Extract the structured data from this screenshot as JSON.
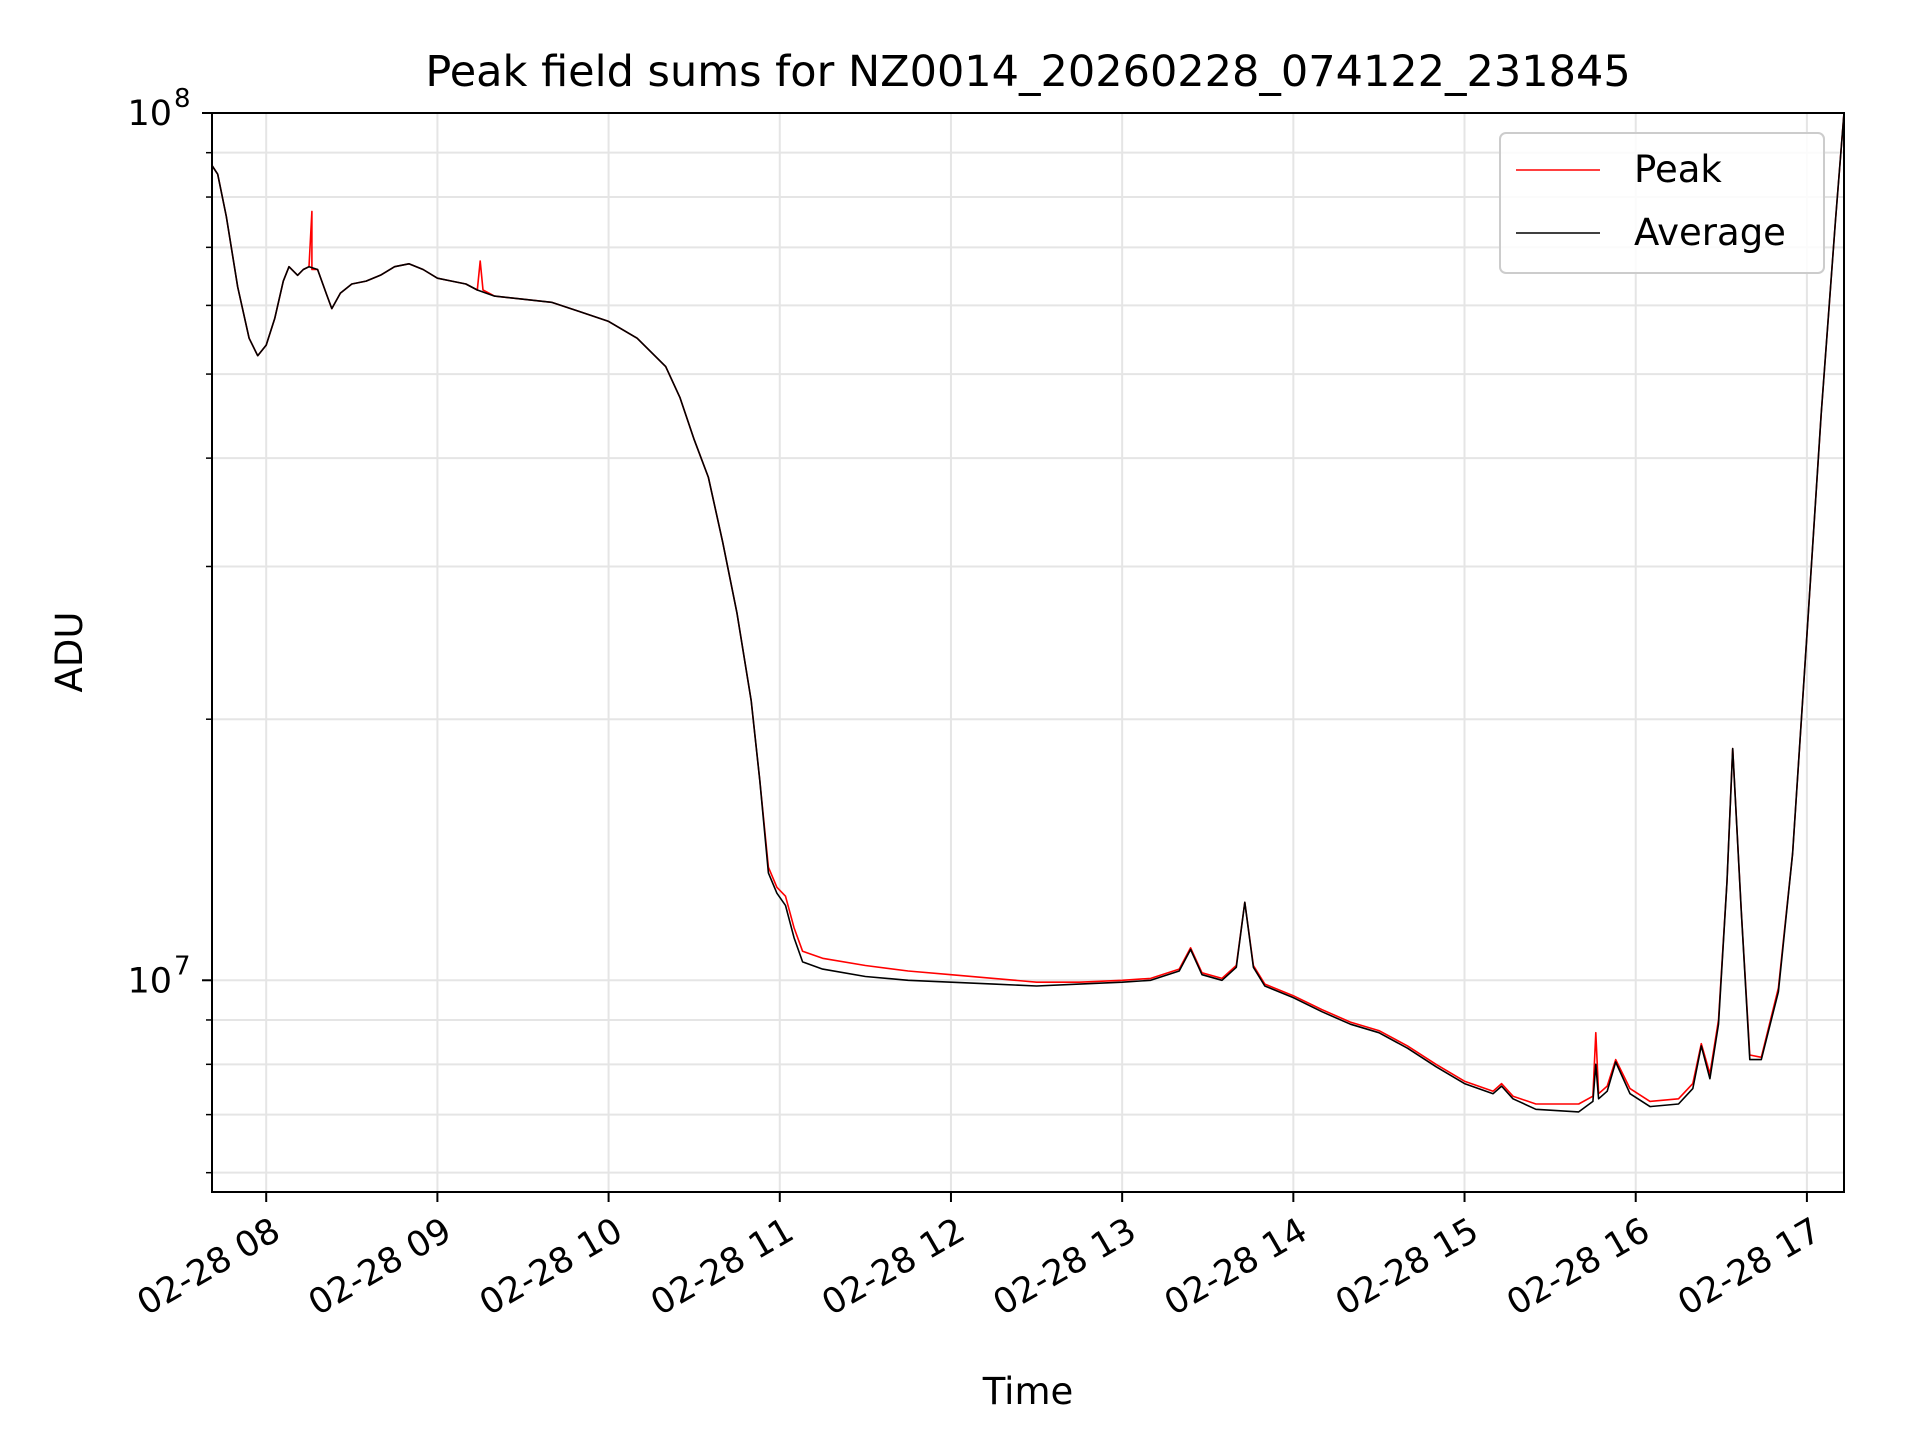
{
  "chart_data": {
    "type": "line",
    "title": "Peak field sums for NZ0014_20260228_074122_231845",
    "xlabel": "Time",
    "ylabel": "ADU",
    "yscale": "log",
    "ylim": [
      5700000,
      100000000
    ],
    "xlim": [
      "2026-02-28 07:41",
      "2026-02-28 17:13"
    ],
    "grid": true,
    "legend_position": "top-right",
    "x_ticks": [
      "02-28 08",
      "02-28 09",
      "02-28 10",
      "02-28 11",
      "02-28 12",
      "02-28 13",
      "02-28 14",
      "02-28 15",
      "02-28 16",
      "02-28 17"
    ],
    "y_ticks": [
      {
        "base": "10",
        "exp": "7",
        "value": 10000000
      },
      {
        "base": "10",
        "exp": "8",
        "value": 100000000
      }
    ],
    "colors": {
      "Peak": "#ff0000",
      "Average": "#000000",
      "grid": "#e5e5e5"
    },
    "series": [
      {
        "name": "Peak",
        "points": [
          [
            "07:41",
            87000000
          ],
          [
            "07:43",
            85000000
          ],
          [
            "07:46",
            76000000
          ],
          [
            "07:50",
            63000000
          ],
          [
            "07:54",
            55000000
          ],
          [
            "07:57",
            52500000
          ],
          [
            "08:00",
            54000000
          ],
          [
            "08:03",
            58000000
          ],
          [
            "08:06",
            64000000
          ],
          [
            "08:08",
            66500000
          ],
          [
            "08:11",
            65000000
          ],
          [
            "08:13",
            66000000
          ],
          [
            "08:15",
            66500000
          ],
          [
            "08:16",
            77000000
          ],
          [
            "08:16",
            66000000
          ],
          [
            "08:18",
            66000000
          ],
          [
            "08:21",
            62000000
          ],
          [
            "08:23",
            59500000
          ],
          [
            "08:26",
            62000000
          ],
          [
            "08:30",
            63500000
          ],
          [
            "08:35",
            64000000
          ],
          [
            "08:40",
            65000000
          ],
          [
            "08:45",
            66500000
          ],
          [
            "08:50",
            67000000
          ],
          [
            "08:55",
            66000000
          ],
          [
            "09:00",
            64500000
          ],
          [
            "09:05",
            64000000
          ],
          [
            "09:10",
            63500000
          ],
          [
            "09:14",
            62500000
          ],
          [
            "09:15",
            67500000
          ],
          [
            "09:16",
            62500000
          ],
          [
            "09:20",
            61500000
          ],
          [
            "09:30",
            61000000
          ],
          [
            "09:40",
            60500000
          ],
          [
            "09:50",
            59000000
          ],
          [
            "10:00",
            57500000
          ],
          [
            "10:10",
            55000000
          ],
          [
            "10:20",
            51000000
          ],
          [
            "10:25",
            47000000
          ],
          [
            "10:30",
            42000000
          ],
          [
            "10:35",
            38000000
          ],
          [
            "10:40",
            32000000
          ],
          [
            "10:45",
            26500000
          ],
          [
            "10:50",
            21000000
          ],
          [
            "10:53",
            17000000
          ],
          [
            "10:56",
            13500000
          ],
          [
            "10:59",
            12800000
          ],
          [
            "11:02",
            12500000
          ],
          [
            "11:05",
            11500000
          ],
          [
            "11:08",
            10800000
          ],
          [
            "11:15",
            10600000
          ],
          [
            "11:30",
            10400000
          ],
          [
            "11:45",
            10250000
          ],
          [
            "12:00",
            10150000
          ],
          [
            "12:15",
            10050000
          ],
          [
            "12:30",
            9950000
          ],
          [
            "12:45",
            9950000
          ],
          [
            "13:00",
            10000000
          ],
          [
            "13:10",
            10050000
          ],
          [
            "13:20",
            10300000
          ],
          [
            "13:24",
            10900000
          ],
          [
            "13:28",
            10200000
          ],
          [
            "13:35",
            10050000
          ],
          [
            "13:40",
            10400000
          ],
          [
            "13:43",
            12300000
          ],
          [
            "13:46",
            10400000
          ],
          [
            "13:50",
            9900000
          ],
          [
            "14:00",
            9600000
          ],
          [
            "14:10",
            9250000
          ],
          [
            "14:20",
            8950000
          ],
          [
            "14:30",
            8750000
          ],
          [
            "14:40",
            8400000
          ],
          [
            "14:50",
            8000000
          ],
          [
            "15:00",
            7650000
          ],
          [
            "15:10",
            7450000
          ],
          [
            "15:13",
            7600000
          ],
          [
            "15:17",
            7350000
          ],
          [
            "15:25",
            7200000
          ],
          [
            "15:40",
            7200000
          ],
          [
            "15:45",
            7350000
          ],
          [
            "15:46",
            8700000
          ],
          [
            "15:47",
            7400000
          ],
          [
            "15:50",
            7550000
          ],
          [
            "15:53",
            8100000
          ],
          [
            "15:58",
            7500000
          ],
          [
            "16:05",
            7250000
          ],
          [
            "16:15",
            7300000
          ],
          [
            "16:20",
            7600000
          ],
          [
            "16:23",
            8450000
          ],
          [
            "16:26",
            7800000
          ],
          [
            "16:29",
            9000000
          ],
          [
            "16:32",
            13000000
          ],
          [
            "16:34",
            18500000
          ],
          [
            "16:37",
            12000000
          ],
          [
            "16:40",
            8200000
          ],
          [
            "16:44",
            8150000
          ],
          [
            "16:50",
            9800000
          ],
          [
            "16:55",
            14000000
          ],
          [
            "17:00",
            25000000
          ],
          [
            "17:05",
            45000000
          ],
          [
            "17:10",
            75000000
          ],
          [
            "17:13",
            100000000
          ]
        ]
      },
      {
        "name": "Average",
        "points": [
          [
            "07:41",
            87000000
          ],
          [
            "07:43",
            85000000
          ],
          [
            "07:46",
            76000000
          ],
          [
            "07:50",
            63000000
          ],
          [
            "07:54",
            55000000
          ],
          [
            "07:57",
            52500000
          ],
          [
            "08:00",
            54000000
          ],
          [
            "08:03",
            58000000
          ],
          [
            "08:06",
            64000000
          ],
          [
            "08:08",
            66500000
          ],
          [
            "08:11",
            65000000
          ],
          [
            "08:13",
            66000000
          ],
          [
            "08:15",
            66500000
          ],
          [
            "08:18",
            66000000
          ],
          [
            "08:21",
            62000000
          ],
          [
            "08:23",
            59500000
          ],
          [
            "08:26",
            62000000
          ],
          [
            "08:30",
            63500000
          ],
          [
            "08:35",
            64000000
          ],
          [
            "08:40",
            65000000
          ],
          [
            "08:45",
            66500000
          ],
          [
            "08:50",
            67000000
          ],
          [
            "08:55",
            66000000
          ],
          [
            "09:00",
            64500000
          ],
          [
            "09:05",
            64000000
          ],
          [
            "09:10",
            63500000
          ],
          [
            "09:14",
            62500000
          ],
          [
            "09:20",
            61500000
          ],
          [
            "09:30",
            61000000
          ],
          [
            "09:40",
            60500000
          ],
          [
            "09:50",
            59000000
          ],
          [
            "10:00",
            57500000
          ],
          [
            "10:10",
            55000000
          ],
          [
            "10:20",
            51000000
          ],
          [
            "10:25",
            47000000
          ],
          [
            "10:30",
            42000000
          ],
          [
            "10:35",
            38000000
          ],
          [
            "10:40",
            32000000
          ],
          [
            "10:45",
            26500000
          ],
          [
            "10:50",
            21000000
          ],
          [
            "10:53",
            17000000
          ],
          [
            "10:56",
            13300000
          ],
          [
            "10:59",
            12600000
          ],
          [
            "11:02",
            12200000
          ],
          [
            "11:05",
            11200000
          ],
          [
            "11:08",
            10500000
          ],
          [
            "11:15",
            10300000
          ],
          [
            "11:30",
            10100000
          ],
          [
            "11:45",
            10000000
          ],
          [
            "12:00",
            9950000
          ],
          [
            "12:15",
            9900000
          ],
          [
            "12:30",
            9850000
          ],
          [
            "12:45",
            9900000
          ],
          [
            "13:00",
            9950000
          ],
          [
            "13:10",
            10000000
          ],
          [
            "13:20",
            10250000
          ],
          [
            "13:24",
            10850000
          ],
          [
            "13:28",
            10150000
          ],
          [
            "13:35",
            10000000
          ],
          [
            "13:40",
            10350000
          ],
          [
            "13:43",
            12300000
          ],
          [
            "13:46",
            10350000
          ],
          [
            "13:50",
            9850000
          ],
          [
            "14:00",
            9550000
          ],
          [
            "14:10",
            9200000
          ],
          [
            "14:20",
            8900000
          ],
          [
            "14:30",
            8700000
          ],
          [
            "14:40",
            8350000
          ],
          [
            "14:50",
            7950000
          ],
          [
            "15:00",
            7600000
          ],
          [
            "15:10",
            7400000
          ],
          [
            "15:13",
            7550000
          ],
          [
            "15:17",
            7300000
          ],
          [
            "15:25",
            7100000
          ],
          [
            "15:40",
            7050000
          ],
          [
            "15:45",
            7250000
          ],
          [
            "15:46",
            8000000
          ],
          [
            "15:47",
            7300000
          ],
          [
            "15:50",
            7450000
          ],
          [
            "15:53",
            8050000
          ],
          [
            "15:58",
            7400000
          ],
          [
            "16:05",
            7150000
          ],
          [
            "16:15",
            7200000
          ],
          [
            "16:20",
            7500000
          ],
          [
            "16:23",
            8400000
          ],
          [
            "16:26",
            7700000
          ],
          [
            "16:29",
            8900000
          ],
          [
            "16:32",
            13000000
          ],
          [
            "16:34",
            18500000
          ],
          [
            "16:37",
            12000000
          ],
          [
            "16:40",
            8100000
          ],
          [
            "16:44",
            8100000
          ],
          [
            "16:50",
            9700000
          ],
          [
            "16:55",
            14000000
          ],
          [
            "17:00",
            25000000
          ],
          [
            "17:05",
            45000000
          ],
          [
            "17:10",
            75000000
          ],
          [
            "17:13",
            100000000
          ]
        ]
      }
    ]
  }
}
